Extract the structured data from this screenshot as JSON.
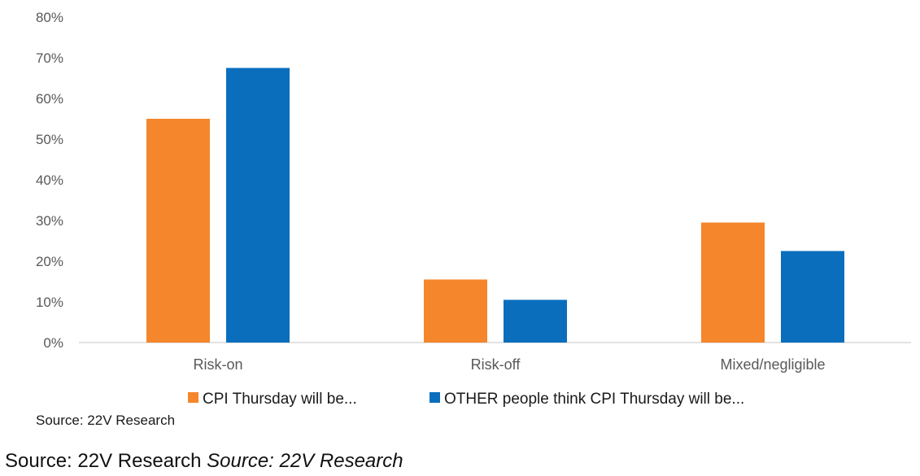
{
  "chart_data": {
    "type": "bar",
    "categories": [
      "Risk-on",
      "Risk-off",
      "Mixed/negligible"
    ],
    "series": [
      {
        "name": "CPI Thursday will be...",
        "values": [
          55,
          15.5,
          29.5
        ],
        "color": "#F5862B"
      },
      {
        "name": "OTHER people think CPI Thursday will be...",
        "values": [
          67.5,
          10.5,
          22.5
        ],
        "color": "#0A6EBD"
      }
    ],
    "ylim": [
      0,
      80
    ],
    "yticks": [
      "0%",
      "10%",
      "20%",
      "30%",
      "40%",
      "50%",
      "60%",
      "70%",
      "80%"
    ],
    "grid": false,
    "legend_position": "bottom",
    "source": "Source: 22V Research"
  },
  "caption": {
    "text": "Source: 22V Research",
    "italic_text": "Source: 22V Research"
  }
}
